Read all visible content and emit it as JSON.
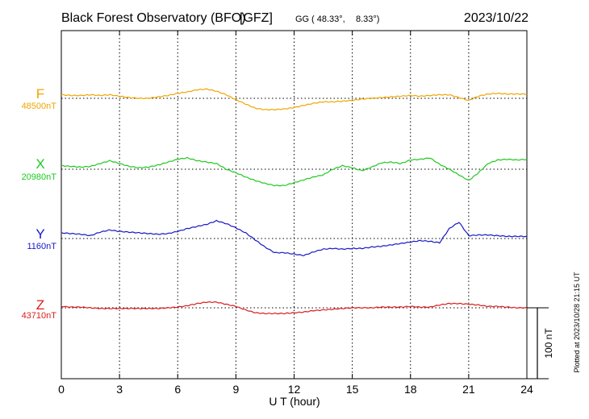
{
  "header": {
    "station": "Black Forest Observatory (BFO)",
    "institute": "[GFZ]",
    "coord_prefix": "GG",
    "lat": "( 48.33°,",
    "lon": "8.33°)",
    "date": "2023/10/22"
  },
  "footnote": "Plotted at 2023/10/28 21:15 UT",
  "scale_label": "100 nT",
  "chart_data": {
    "type": "line",
    "xlabel": "U T (hour)",
    "xlim": [
      0,
      24
    ],
    "x_ticks": [
      0,
      3,
      6,
      9,
      12,
      15,
      18,
      21,
      24
    ],
    "x_tick_labels": [
      "0",
      "3",
      "6",
      "9",
      "12",
      "15",
      "18",
      "21",
      "24"
    ],
    "grid": true,
    "scale_bar_nT": 100,
    "x": [
      0,
      0.5,
      1,
      1.5,
      2,
      2.5,
      3,
      3.5,
      4,
      4.5,
      5,
      5.5,
      6,
      6.5,
      7,
      7.5,
      8,
      8.5,
      9,
      9.5,
      10,
      10.5,
      11,
      11.5,
      12,
      12.5,
      13,
      13.5,
      14,
      14.5,
      15,
      15.5,
      16,
      16.5,
      17,
      17.5,
      18,
      18.5,
      19,
      19.5,
      20,
      20.5,
      21,
      21.5,
      22,
      22.5,
      23,
      23.5,
      24
    ],
    "series": [
      {
        "name": "F",
        "baseline_label": "48500nT",
        "color": "#f0a500",
        "values": [
          5,
          4,
          4,
          5,
          4,
          5,
          3,
          1,
          0,
          0,
          2,
          4,
          7,
          9,
          12,
          13,
          10,
          5,
          -2,
          -8,
          -14,
          -16,
          -16,
          -15,
          -13,
          -10,
          -7,
          -5,
          -5,
          -4,
          -3,
          -1,
          0,
          1,
          2,
          3,
          4,
          3,
          4,
          5,
          5,
          1,
          -3,
          3,
          6,
          7,
          6,
          6,
          6
        ]
      },
      {
        "name": "X",
        "baseline_label": "20980nT",
        "color": "#1ec91e",
        "values": [
          5,
          4,
          3,
          4,
          8,
          12,
          8,
          4,
          2,
          3,
          6,
          10,
          14,
          16,
          12,
          10,
          8,
          0,
          -5,
          -11,
          -16,
          -20,
          -23,
          -23,
          -19,
          -15,
          -11,
          -8,
          0,
          5,
          2,
          -2,
          3,
          9,
          10,
          8,
          13,
          14,
          16,
          7,
          0,
          -8,
          -16,
          -5,
          8,
          13,
          14,
          13,
          14
        ]
      },
      {
        "name": "Y",
        "baseline_label": "1160nT",
        "color": "#1818c8",
        "values": [
          8,
          7,
          6,
          4,
          9,
          12,
          10,
          9,
          8,
          7,
          6,
          7,
          10,
          14,
          17,
          20,
          25,
          21,
          15,
          8,
          -2,
          -12,
          -20,
          -20,
          -22,
          -24,
          -19,
          -15,
          -14,
          -15,
          -14,
          -14,
          -12,
          -11,
          -9,
          -7,
          -5,
          -3,
          -4,
          -6,
          14,
          23,
          4,
          5,
          5,
          4,
          3,
          3,
          3
        ]
      },
      {
        "name": "Z",
        "baseline_label": "43710nT",
        "color": "#dc1c1c",
        "values": [
          2,
          1,
          1,
          0,
          -1,
          -1,
          -1,
          -1,
          -1,
          -1,
          -1,
          0,
          1,
          3,
          6,
          8,
          8,
          5,
          2,
          -3,
          -7,
          -8,
          -8,
          -8,
          -7,
          -6,
          -4,
          -3,
          -2,
          -1,
          0,
          0,
          0,
          1,
          1,
          1,
          2,
          1,
          1,
          4,
          6,
          6,
          5,
          4,
          2,
          2,
          1,
          0,
          0
        ]
      }
    ]
  }
}
